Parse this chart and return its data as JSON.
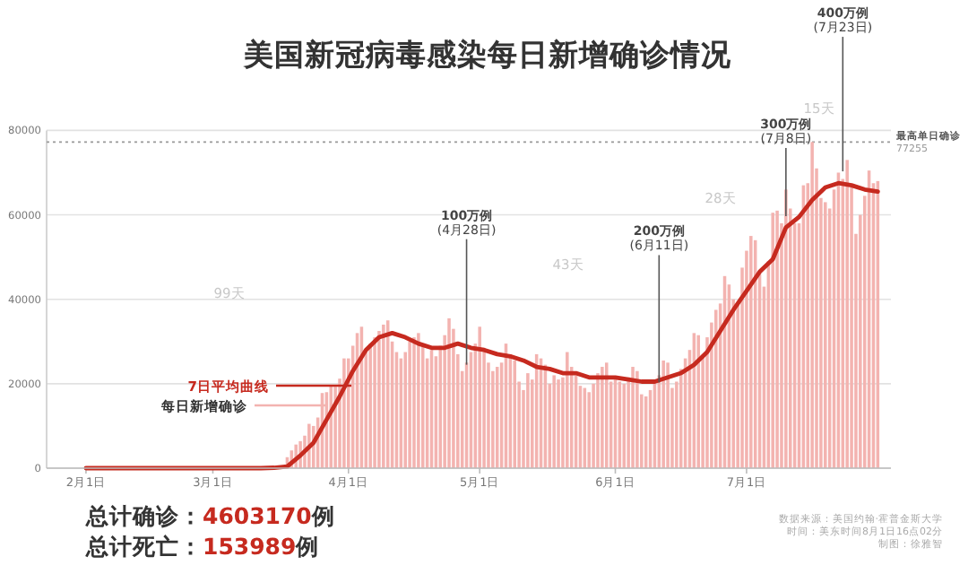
{
  "chart_data": {
    "type": "bar",
    "title": "美国新冠病毒感染每日新增确诊情况",
    "x": [
      "--02-01",
      "--02-02",
      "--02-03",
      "--02-04",
      "--02-05",
      "--02-06",
      "--02-07",
      "--02-08",
      "--02-09",
      "--02-10",
      "--02-11",
      "--02-12",
      "--02-13",
      "--02-14",
      "--02-15",
      "--02-16",
      "--02-17",
      "--02-18",
      "--02-19",
      "--02-20",
      "--02-21",
      "--02-22",
      "--02-23",
      "--02-24",
      "--02-25",
      "--02-26",
      "--02-27",
      "--02-28",
      "--02-29",
      "--03-01",
      "--03-02",
      "--03-03",
      "--03-04",
      "--03-05",
      "--03-06",
      "--03-07",
      "--03-08",
      "--03-09",
      "--03-10",
      "--03-11",
      "--03-12",
      "--03-13",
      "--03-14",
      "--03-15",
      "--03-16",
      "--03-17",
      "--03-18",
      "--03-19",
      "--03-20",
      "--03-21",
      "--03-22",
      "--03-23",
      "--03-24",
      "--03-25",
      "--03-26",
      "--03-27",
      "--03-28",
      "--03-29",
      "--03-30",
      "--03-31",
      "--04-01",
      "--04-02",
      "--04-03",
      "--04-04",
      "--04-05",
      "--04-06",
      "--04-07",
      "--04-08",
      "--04-09",
      "--04-10",
      "--04-11",
      "--04-12",
      "--04-13",
      "--04-14",
      "--04-15",
      "--04-16",
      "--04-17",
      "--04-18",
      "--04-19",
      "--04-20",
      "--04-21",
      "--04-22",
      "--04-23",
      "--04-24",
      "--04-25",
      "--04-26",
      "--04-27",
      "--04-28",
      "--04-29",
      "--04-30",
      "--05-01",
      "--05-02",
      "--05-03",
      "--05-04",
      "--05-05",
      "--05-06",
      "--05-07",
      "--05-08",
      "--05-09",
      "--05-10",
      "--05-11",
      "--05-12",
      "--05-13",
      "--05-14",
      "--05-15",
      "--05-16",
      "--05-17",
      "--05-18",
      "--05-19",
      "--05-20",
      "--05-21",
      "--05-22",
      "--05-23",
      "--05-24",
      "--05-25",
      "--05-26",
      "--05-27",
      "--05-28",
      "--05-29",
      "--05-30",
      "--05-31",
      "--06-01",
      "--06-02",
      "--06-03",
      "--06-04",
      "--06-05",
      "--06-06",
      "--06-07",
      "--06-08",
      "--06-09",
      "--06-10",
      "--06-11",
      "--06-12",
      "--06-13",
      "--06-14",
      "--06-15",
      "--06-16",
      "--06-17",
      "--06-18",
      "--06-19",
      "--06-20",
      "--06-21",
      "--06-22",
      "--06-23",
      "--06-24",
      "--06-25",
      "--06-26",
      "--06-27",
      "--06-28",
      "--06-29",
      "--06-30",
      "--07-01",
      "--07-02",
      "--07-03",
      "--07-04",
      "--07-05",
      "--07-06",
      "--07-07",
      "--07-08",
      "--07-09",
      "--07-10",
      "--07-11",
      "--07-12",
      "--07-13",
      "--07-14",
      "--07-15",
      "--07-16",
      "--07-17",
      "--07-18",
      "--07-19",
      "--07-20",
      "--07-21",
      "--07-22",
      "--07-23",
      "--07-24",
      "--07-25",
      "--07-26",
      "--07-27",
      "--07-28",
      "--07-29",
      "--07-30",
      "--07-31"
    ],
    "series": [
      {
        "name": "每日新增确诊",
        "color": "#f3b3b0",
        "values": [
          0,
          0,
          0,
          0,
          0,
          0,
          0,
          0,
          0,
          0,
          0,
          0,
          0,
          0,
          0,
          0,
          0,
          0,
          0,
          0,
          0,
          0,
          0,
          0,
          0,
          0,
          0,
          0,
          0,
          0,
          0,
          0,
          0,
          0,
          0,
          0,
          0,
          0,
          0,
          0,
          0,
          0,
          0,
          0,
          0,
          0,
          2600,
          4200,
          5600,
          6400,
          7700,
          10500,
          10000,
          12000,
          17800,
          18000,
          19500,
          19300,
          21200,
          26000,
          26000,
          29000,
          32000,
          33500,
          28000,
          29500,
          31000,
          32500,
          34000,
          35000,
          30000,
          27500,
          26000,
          27500,
          30000,
          31000,
          32000,
          29000,
          26000,
          28000,
          26500,
          29000,
          31500,
          35500,
          33000,
          27000,
          23000,
          25000,
          27500,
          29500,
          33500,
          28500,
          25000,
          23000,
          24000,
          25000,
          29500,
          27000,
          25500,
          20500,
          18500,
          22500,
          21000,
          27000,
          26000,
          24500,
          20000,
          22000,
          21000,
          21500,
          27500,
          24000,
          22000,
          19500,
          19000,
          18000,
          20000,
          22500,
          24000,
          25000,
          20500,
          21000,
          20500,
          20000,
          21500,
          24000,
          23000,
          17500,
          17000,
          18500,
          21000,
          22000,
          25500,
          25000,
          19000,
          20500,
          23500,
          26000,
          28000,
          32000,
          31500,
          26500,
          31000,
          34500,
          37500,
          39000,
          45500,
          43500,
          40000,
          39000,
          47500,
          51500,
          55000,
          54000,
          46000,
          43000,
          49000,
          60500,
          61000,
          58000,
          66000,
          61500,
          58000,
          58000,
          67000,
          67500,
          77255,
          71000,
          64000,
          63000,
          61500,
          66000,
          70000,
          68500,
          73000,
          66500,
          55500,
          60000,
          64500,
          70500,
          67500,
          68000
        ]
      },
      {
        "name": "7日平均曲线",
        "type": "line",
        "color": "#c62a1f",
        "line_style": "solid",
        "x": [
          "--02-01",
          "--02-15",
          "--03-01",
          "--03-08",
          "--03-12",
          "--03-15",
          "--03-18",
          "--03-21",
          "--03-24",
          "--03-27",
          "--03-30",
          "--04-02",
          "--04-05",
          "--04-08",
          "--04-11",
          "--04-14",
          "--04-17",
          "--04-20",
          "--04-23",
          "--04-26",
          "--04-29",
          "--05-02",
          "--05-05",
          "--05-08",
          "--05-11",
          "--05-14",
          "--05-17",
          "--05-20",
          "--05-23",
          "--05-26",
          "--05-29",
          "--06-01",
          "--06-04",
          "--06-07",
          "--06-10",
          "--06-13",
          "--06-16",
          "--06-19",
          "--06-22",
          "--06-25",
          "--06-28",
          "--07-01",
          "--07-04",
          "--07-07",
          "--07-10",
          "--07-13",
          "--07-16",
          "--07-19",
          "--07-22",
          "--07-25",
          "--07-28",
          "--07-31"
        ],
        "values": [
          0,
          0,
          0,
          0,
          0,
          100,
          400,
          3000,
          6000,
          11500,
          17000,
          23000,
          28000,
          31000,
          32000,
          31000,
          29500,
          28500,
          28500,
          29500,
          28500,
          28000,
          27000,
          26500,
          25500,
          24000,
          23500,
          22500,
          22500,
          21500,
          21500,
          21500,
          21000,
          20500,
          20500,
          21500,
          22500,
          24500,
          27500,
          32500,
          37500,
          42000,
          46500,
          49500,
          57000,
          59500,
          63500,
          66500,
          67500,
          67000,
          66000,
          65500
        ]
      }
    ],
    "xlim": [
      "--01-23",
      "--08-03"
    ],
    "xticks": [
      {
        "value": "--02-01",
        "label": "2月1日"
      },
      {
        "value": "--03-01",
        "label": "3月1日"
      },
      {
        "value": "--04-01",
        "label": "4月1日"
      },
      {
        "value": "--05-01",
        "label": "5月1日"
      },
      {
        "value": "--06-01",
        "label": "6月1日"
      },
      {
        "value": "--07-01",
        "label": "7月1日"
      }
    ],
    "ylim": [
      0,
      80000
    ],
    "yticks": [
      0,
      20000,
      40000,
      60000,
      80000
    ],
    "grid": "y",
    "legend": false,
    "ref_lines": [
      {
        "axis": "y",
        "value": 77255,
        "label": "最高单日确诊\n77255",
        "color": "#999999",
        "line_style": "dotted"
      }
    ],
    "annotations": [
      {
        "text": "100万例\n(4月28日)",
        "x": "--04-28",
        "y": 24500
      },
      {
        "text": "200万例\n(6月11日)",
        "x": "--06-11",
        "y": 20300
      },
      {
        "text": "300万例\n(7月8日)",
        "x": "--07-10",
        "y": 59700
      },
      {
        "text": "400万例\n(7月23日)",
        "x": "--07-23",
        "y": 70300
      },
      "99天",
      "43天",
      "28天",
      "15天",
      "总计确诊：4603170例",
      "总计死亡：153989例",
      "数据来源：美国约翰·霍普金斯大学",
      "时间：美东时间8月1日16点02分",
      "制图：徐雅智"
    ]
  }
}
